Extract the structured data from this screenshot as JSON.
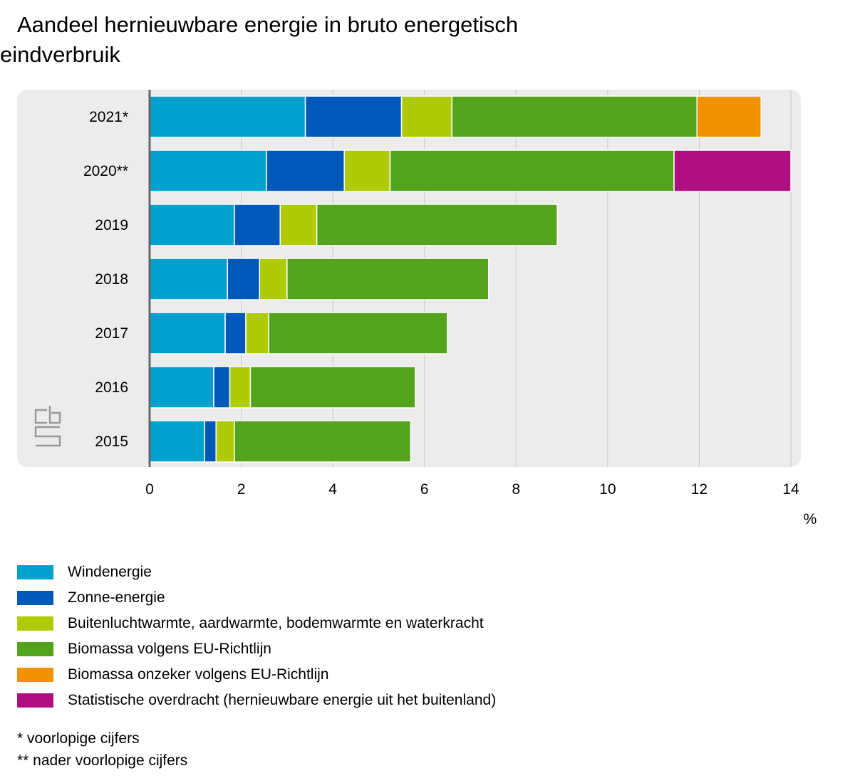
{
  "title": "Aandeel hernieuwbare energie in bruto energetisch eindverbruik",
  "unit_label": "%",
  "colors": {
    "plot_background": "#ececec",
    "gridline": "#c8c8c8",
    "axis": "#666666"
  },
  "chart_data": {
    "type": "bar",
    "orientation": "horizontal",
    "stacked": true,
    "title": "Aandeel hernieuwbare energie in bruto energetisch eindverbruik",
    "xlabel": "%",
    "ylabel": "",
    "xlim": [
      0,
      14
    ],
    "x_ticks": [
      0,
      2,
      4,
      6,
      8,
      10,
      12,
      14
    ],
    "grid": true,
    "legend_placement": "bottom",
    "categories": [
      "2021*",
      "2020**",
      "2019",
      "2018",
      "2017",
      "2016",
      "2015"
    ],
    "series": [
      {
        "name": "Windenergie",
        "color": "#00a1cd",
        "values": [
          3.4,
          2.55,
          1.85,
          1.7,
          1.65,
          1.4,
          1.2
        ]
      },
      {
        "name": "Zonne-energie",
        "color": "#0058b8",
        "values": [
          2.1,
          1.7,
          1.0,
          0.7,
          0.45,
          0.35,
          0.25
        ]
      },
      {
        "name": "Buitenluchtwarmte, aardwarmte, bodemwarmte en waterkracht",
        "color": "#afcb05",
        "values": [
          1.1,
          1.0,
          0.8,
          0.6,
          0.5,
          0.45,
          0.4
        ]
      },
      {
        "name": "Biomassa volgens EU-Richtlijn",
        "color": "#53a31d",
        "values": [
          5.35,
          6.2,
          5.25,
          4.4,
          3.9,
          3.6,
          3.85
        ]
      },
      {
        "name": "Biomassa onzeker volgens EU-Richtlijn",
        "color": "#f39200",
        "values": [
          1.4,
          0,
          0,
          0,
          0,
          0,
          0
        ]
      },
      {
        "name": "Statistische overdracht (hernieuwbare energie uit het buitenland)",
        "color": "#af0e80",
        "values": [
          0,
          2.55,
          0,
          0,
          0,
          0,
          0
        ]
      }
    ]
  },
  "footnotes": [
    "* voorlopige cijfers",
    "** nader voorlopige cijfers"
  ]
}
